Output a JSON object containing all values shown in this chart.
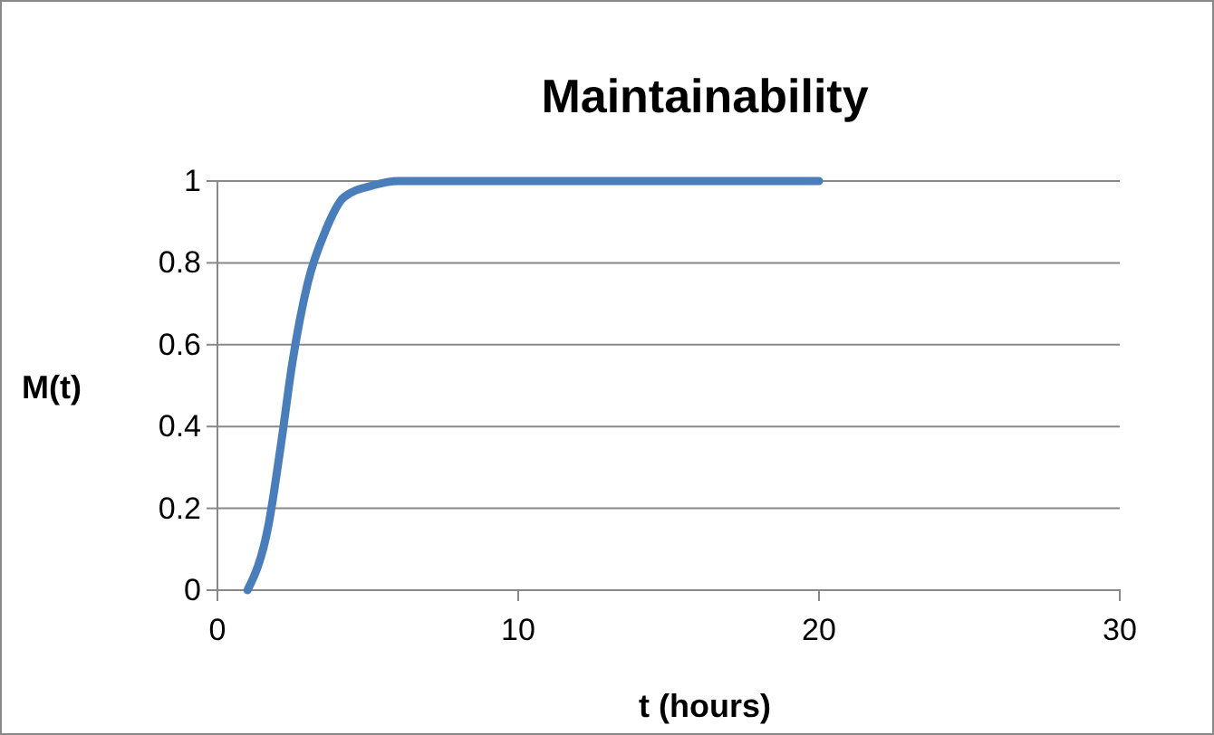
{
  "chart_data": {
    "type": "line",
    "title": "Maintainability",
    "xlabel": "t (hours)",
    "ylabel": "M(t)",
    "x": [
      1,
      1.7,
      2.1,
      2.5,
      3,
      3.6,
      4.2,
      5.2,
      6,
      8,
      10,
      15,
      20
    ],
    "series": [
      {
        "color": "#4a7ebb",
        "values": [
          0,
          0.16,
          0.35,
          0.56,
          0.75,
          0.88,
          0.96,
          0.99,
          1,
          1,
          1,
          1,
          1
        ]
      }
    ],
    "xlim": [
      0,
      30
    ],
    "xticks": [
      0,
      10,
      20,
      30
    ],
    "ylim": [
      0,
      1
    ],
    "yticks": [
      0,
      0.2,
      0.4,
      0.6,
      0.8,
      1
    ],
    "grid": "y",
    "marker": "none",
    "line_style": "solid"
  }
}
